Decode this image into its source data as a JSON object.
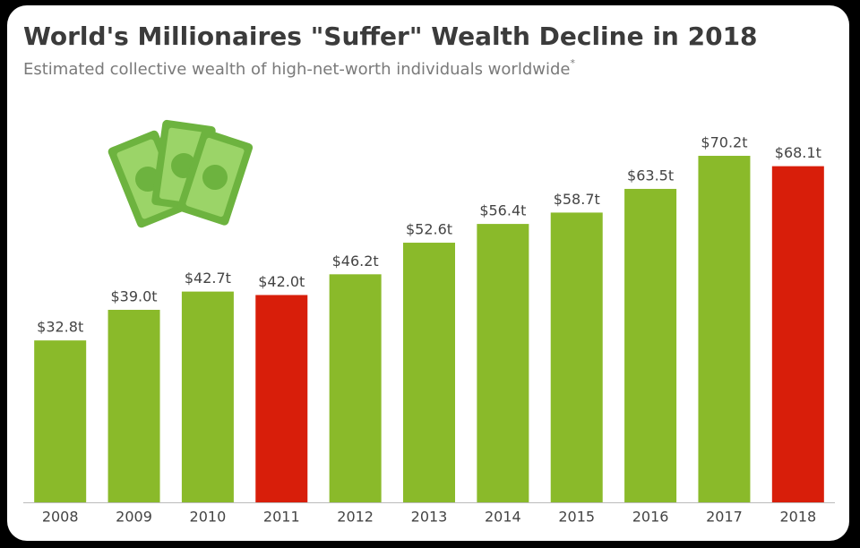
{
  "chart_data": {
    "type": "bar",
    "title": "World's Millionaires \"Suffer\" Wealth Decline in 2018",
    "subtitle": "Estimated collective wealth of high-net-worth individuals worldwide",
    "subtitle_marker": "*",
    "categories": [
      "2008",
      "2009",
      "2010",
      "2011",
      "2012",
      "2013",
      "2014",
      "2015",
      "2016",
      "2017",
      "2018"
    ],
    "values": [
      32.8,
      39.0,
      42.7,
      42.0,
      46.2,
      52.6,
      56.4,
      58.7,
      63.5,
      70.2,
      68.1
    ],
    "value_labels": [
      "$32.8t",
      "$39.0t",
      "$42.7t",
      "$42.0t",
      "$46.2t",
      "$52.6t",
      "$56.4t",
      "$58.7t",
      "$63.5t",
      "$70.2t",
      "$68.1t"
    ],
    "colors": [
      "#8aba2a",
      "#8aba2a",
      "#8aba2a",
      "#d81e0a",
      "#8aba2a",
      "#8aba2a",
      "#8aba2a",
      "#8aba2a",
      "#8aba2a",
      "#8aba2a",
      "#d81e0a"
    ],
    "ylim": [
      0,
      80
    ]
  }
}
